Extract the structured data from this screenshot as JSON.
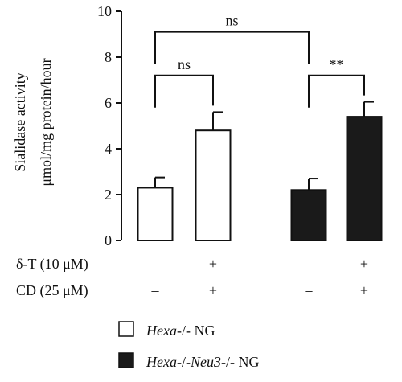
{
  "chart_data": {
    "type": "bar",
    "ylabel": [
      "Sialidase activity",
      "μmol/mg protein/hour"
    ],
    "ylim": [
      0,
      10
    ],
    "yticks": [
      "0",
      "2",
      "4",
      "6",
      "8",
      "10"
    ],
    "bars": [
      {
        "value": 2.3,
        "error": 0.45,
        "fill": "#ffffff",
        "group": 0
      },
      {
        "value": 4.8,
        "error": 0.8,
        "fill": "#ffffff",
        "group": 0
      },
      {
        "value": 2.2,
        "error": 0.5,
        "fill": "#1a1a1a",
        "group": 1
      },
      {
        "value": 5.4,
        "error": 0.65,
        "fill": "#1a1a1a",
        "group": 1
      }
    ],
    "conditions": [
      {
        "label": "δ-T (10 μM)",
        "marks": [
          "–",
          "+",
          "–",
          "+"
        ]
      },
      {
        "label": "CD (25 μM)",
        "marks": [
          "–",
          "+",
          "–",
          "+"
        ]
      }
    ],
    "significance": [
      {
        "from": 0,
        "to": 1,
        "text": "ns",
        "level": 7.2
      },
      {
        "from": 2,
        "to": 3,
        "text": "**",
        "level": 7.2
      },
      {
        "from": 0,
        "to": 2,
        "text": "ns",
        "level": 9.1
      }
    ],
    "legend": [
      {
        "prefix": "Hexa",
        "text": "Hexa-/- NG",
        "fill": "#ffffff"
      },
      {
        "prefix": "Hexa-/-Neu3",
        "text": "Hexa-/-Neu3-/- NG",
        "fill": "#1a1a1a"
      }
    ],
    "legend_texts": {
      "item0_italic": "Hexa",
      "item0_rest": "-/- NG",
      "item1_italic1": "Hexa",
      "item1_mid": "-/-",
      "item1_italic2": "Neu3",
      "item1_rest": "-/- NG"
    }
  }
}
